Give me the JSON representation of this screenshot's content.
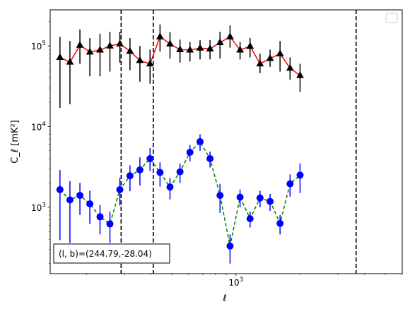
{
  "chart_data": {
    "type": "line",
    "xlabel": "ℓ",
    "ylabel": "C_ℓ  [mK²]",
    "xscale": "log",
    "yscale": "log",
    "xlim": [
      135,
      6000
    ],
    "ylim": [
      150,
      280000
    ],
    "grid": false,
    "legend": "top-right (empty)",
    "x_tick_labels": [
      {
        "value": 1000,
        "label": "10^3"
      }
    ],
    "y_tick_labels": [
      {
        "value": 1000,
        "label": "10^3"
      },
      {
        "value": 10000,
        "label": "10^4"
      },
      {
        "value": 100000,
        "label": "10^5"
      }
    ],
    "vlines": [
      290,
      410,
      3650
    ],
    "annotation": "(l, b)=(244.79,-28.04)",
    "series": [
      {
        "marker": "triangle",
        "color": "#000000",
        "line_color": "#ff0000",
        "linestyle": "solid",
        "points": [
          {
            "x": 150,
            "y": 72000,
            "lo": 17000,
            "hi": 130000
          },
          {
            "x": 167,
            "y": 63000,
            "lo": 19000,
            "hi": 115000
          },
          {
            "x": 186,
            "y": 102000,
            "lo": 60000,
            "hi": 160000
          },
          {
            "x": 207,
            "y": 84000,
            "lo": 42000,
            "hi": 125000
          },
          {
            "x": 231,
            "y": 89000,
            "lo": 42000,
            "hi": 142000
          },
          {
            "x": 257,
            "y": 100000,
            "lo": 48000,
            "hi": 150000
          },
          {
            "x": 286,
            "y": 106000,
            "lo": 62000,
            "hi": 150000
          },
          {
            "x": 319,
            "y": 86000,
            "lo": 50000,
            "hi": 125000
          },
          {
            "x": 355,
            "y": 66000,
            "lo": 36000,
            "hi": 100000
          },
          {
            "x": 396,
            "y": 60000,
            "lo": 34000,
            "hi": 90000
          },
          {
            "x": 441,
            "y": 130000,
            "lo": 85000,
            "hi": 185000
          },
          {
            "x": 491,
            "y": 106000,
            "lo": 70000,
            "hi": 148000
          },
          {
            "x": 547,
            "y": 90000,
            "lo": 62000,
            "hi": 120000
          },
          {
            "x": 609,
            "y": 89000,
            "lo": 64000,
            "hi": 112000
          },
          {
            "x": 679,
            "y": 94000,
            "lo": 68000,
            "hi": 118000
          },
          {
            "x": 756,
            "y": 92000,
            "lo": 68000,
            "hi": 118000
          },
          {
            "x": 842,
            "y": 110000,
            "lo": 70000,
            "hi": 150000
          },
          {
            "x": 938,
            "y": 130000,
            "lo": 95000,
            "hi": 180000
          },
          {
            "x": 1045,
            "y": 89000,
            "lo": 68000,
            "hi": 112000
          },
          {
            "x": 1164,
            "y": 99000,
            "lo": 72000,
            "hi": 125000
          },
          {
            "x": 1296,
            "y": 60000,
            "lo": 46000,
            "hi": 80000
          },
          {
            "x": 1444,
            "y": 70000,
            "lo": 55000,
            "hi": 90000
          },
          {
            "x": 1608,
            "y": 80000,
            "lo": 48000,
            "hi": 115000
          },
          {
            "x": 1791,
            "y": 53000,
            "lo": 38000,
            "hi": 72000
          },
          {
            "x": 1995,
            "y": 43000,
            "lo": 27000,
            "hi": 60000
          }
        ]
      },
      {
        "marker": "circle",
        "color": "#0000ff",
        "line_color": "#008000",
        "linestyle": "dashed",
        "points": [
          {
            "x": 150,
            "y": 1650,
            "lo": 390,
            "hi": 2900
          },
          {
            "x": 167,
            "y": 1230,
            "lo": 360,
            "hi": 2100
          },
          {
            "x": 186,
            "y": 1400,
            "lo": 800,
            "hi": 2000
          },
          {
            "x": 207,
            "y": 1100,
            "lo": 620,
            "hi": 1600
          },
          {
            "x": 231,
            "y": 760,
            "lo": 460,
            "hi": 1060
          },
          {
            "x": 257,
            "y": 620,
            "lo": 360,
            "hi": 880
          },
          {
            "x": 286,
            "y": 1650,
            "lo": 1050,
            "hi": 2300
          },
          {
            "x": 319,
            "y": 2450,
            "lo": 1580,
            "hi": 3300
          },
          {
            "x": 355,
            "y": 2900,
            "lo": 1850,
            "hi": 4150
          },
          {
            "x": 396,
            "y": 4000,
            "lo": 2800,
            "hi": 5400
          },
          {
            "x": 441,
            "y": 2700,
            "lo": 1800,
            "hi": 3600
          },
          {
            "x": 491,
            "y": 1780,
            "lo": 1250,
            "hi": 2300
          },
          {
            "x": 547,
            "y": 2750,
            "lo": 2000,
            "hi": 3500
          },
          {
            "x": 609,
            "y": 4800,
            "lo": 3700,
            "hi": 5900
          },
          {
            "x": 679,
            "y": 6500,
            "lo": 5000,
            "hi": 8000
          },
          {
            "x": 756,
            "y": 4000,
            "lo": 3100,
            "hi": 4900
          },
          {
            "x": 842,
            "y": 1400,
            "lo": 850,
            "hi": 1950
          },
          {
            "x": 938,
            "y": 330,
            "lo": 200,
            "hi": 460
          },
          {
            "x": 1045,
            "y": 1330,
            "lo": 1000,
            "hi": 1660
          },
          {
            "x": 1164,
            "y": 720,
            "lo": 560,
            "hi": 880
          },
          {
            "x": 1296,
            "y": 1300,
            "lo": 1000,
            "hi": 1600
          },
          {
            "x": 1444,
            "y": 1180,
            "lo": 900,
            "hi": 1460
          },
          {
            "x": 1608,
            "y": 630,
            "lo": 460,
            "hi": 800
          },
          {
            "x": 1791,
            "y": 1950,
            "lo": 1350,
            "hi": 2550
          },
          {
            "x": 1995,
            "y": 2500,
            "lo": 1500,
            "hi": 3500
          }
        ]
      }
    ]
  }
}
